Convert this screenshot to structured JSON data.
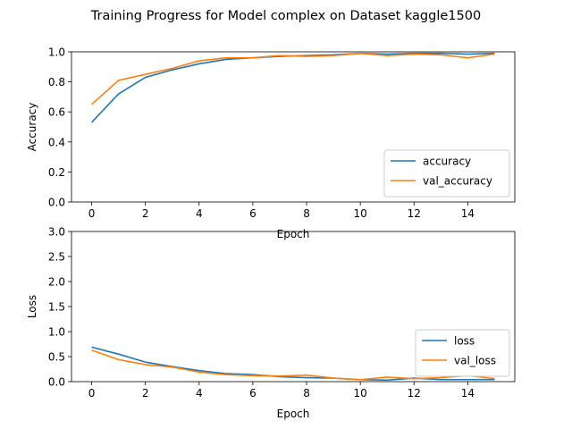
{
  "chart_data": {
    "title": "Training Progress for Model complex on Dataset kaggle1500",
    "colors": {
      "accuracy": "#1f77b4",
      "val_accuracy": "#ff7f0e",
      "loss": "#1f77b4",
      "val_loss": "#ff7f0e"
    },
    "charts": [
      {
        "type": "line",
        "xlabel": "Epoch",
        "ylabel": "Accuracy",
        "xlim": [
          -0.75,
          15.75
        ],
        "ylim": [
          0,
          1.0
        ],
        "xticks": [
          0,
          2,
          4,
          6,
          8,
          10,
          12,
          14
        ],
        "yticks": [
          0.0,
          0.2,
          0.4,
          0.6,
          0.8,
          1.0
        ],
        "ytick_labels": [
          "0.0",
          "0.2",
          "0.4",
          "0.6",
          "0.8",
          "1.0"
        ],
        "legend_position": "lower right",
        "x": [
          0,
          1,
          2,
          3,
          4,
          5,
          6,
          7,
          8,
          9,
          10,
          11,
          12,
          13,
          14,
          15
        ],
        "series": [
          {
            "name": "accuracy",
            "values": [
              0.53,
              0.72,
              0.83,
              0.88,
              0.92,
              0.95,
              0.96,
              0.97,
              0.975,
              0.98,
              0.99,
              0.985,
              0.99,
              0.99,
              0.985,
              0.99
            ]
          },
          {
            "name": "val_accuracy",
            "values": [
              0.65,
              0.81,
              0.85,
              0.89,
              0.94,
              0.96,
              0.96,
              0.975,
              0.97,
              0.975,
              0.99,
              0.975,
              0.985,
              0.98,
              0.96,
              0.985
            ]
          }
        ]
      },
      {
        "type": "line",
        "xlabel": "Epoch",
        "ylabel": "Loss",
        "xlim": [
          -0.75,
          15.75
        ],
        "ylim": [
          0,
          3.0
        ],
        "xticks": [
          0,
          2,
          4,
          6,
          8,
          10,
          12,
          14
        ],
        "yticks": [
          0.0,
          0.5,
          1.0,
          1.5,
          2.0,
          2.5,
          3.0
        ],
        "ytick_labels": [
          "0.0",
          "0.5",
          "1.0",
          "1.5",
          "2.0",
          "2.5",
          "3.0"
        ],
        "legend_position": "lower right",
        "x": [
          0,
          1,
          2,
          3,
          4,
          5,
          6,
          7,
          8,
          9,
          10,
          11,
          12,
          13,
          14,
          15
        ],
        "series": [
          {
            "name": "loss",
            "values": [
              0.69,
              0.55,
              0.39,
              0.3,
              0.22,
              0.16,
              0.14,
              0.1,
              0.08,
              0.07,
              0.04,
              0.03,
              0.07,
              0.04,
              0.04,
              0.04
            ]
          },
          {
            "name": "val_loss",
            "values": [
              0.63,
              0.44,
              0.34,
              0.29,
              0.19,
              0.14,
              0.12,
              0.11,
              0.13,
              0.07,
              0.04,
              0.09,
              0.06,
              0.08,
              0.12,
              0.06
            ]
          }
        ]
      }
    ]
  }
}
